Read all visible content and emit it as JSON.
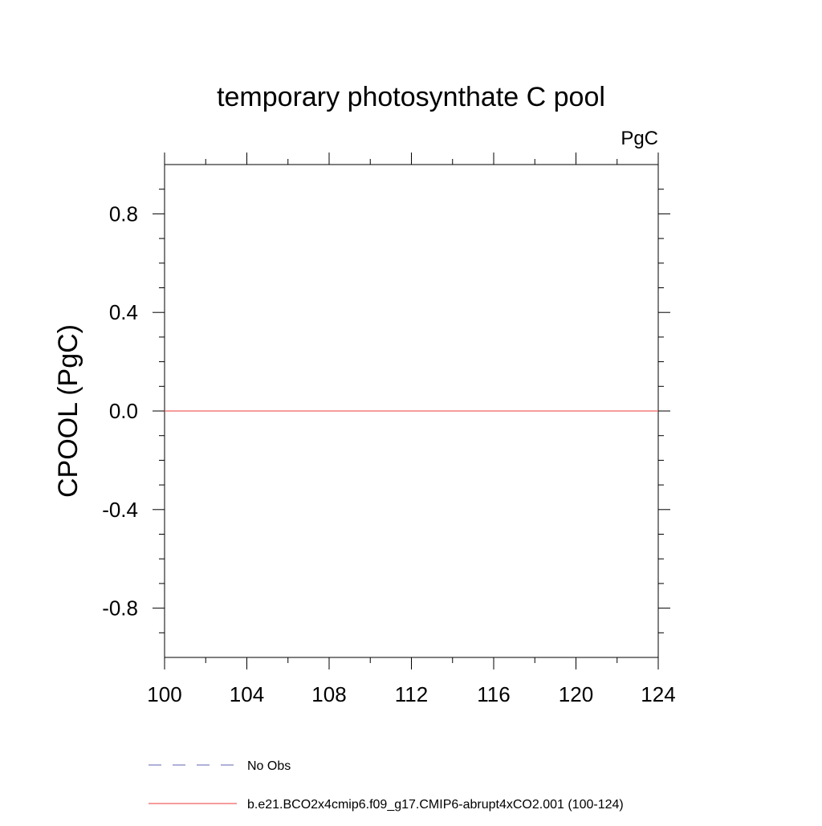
{
  "chart_data": {
    "type": "line",
    "title": "temporary photosynthate C pool",
    "units": "PgC",
    "xlabel": "",
    "ylabel": "CPOOL  (PgC)",
    "xlim": [
      100,
      124
    ],
    "ylim": [
      -1,
      1
    ],
    "x_ticks": [
      100,
      104,
      108,
      112,
      116,
      120,
      124
    ],
    "x_minor_ticks": [
      102,
      106,
      110,
      114,
      118,
      122
    ],
    "y_ticks": [
      -0.8,
      -0.4,
      0.0,
      0.4,
      0.8
    ],
    "y_tick_labels": [
      "-0.8",
      "-0.4",
      "0.0",
      "0.4",
      "0.8"
    ],
    "y_minor_ticks": [
      -0.9,
      -0.7,
      -0.6,
      -0.5,
      -0.3,
      -0.2,
      -0.1,
      0.1,
      0.2,
      0.3,
      0.5,
      0.6,
      0.7,
      0.9
    ],
    "grid": false,
    "legend_position": "bottom",
    "series": [
      {
        "name": "No Obs",
        "color": "#8080c0",
        "dash": "dashed",
        "x": [],
        "y": []
      },
      {
        "name": "b.e21.BCO2x4cmip6.f09_g17.CMIP6-abrupt4xCO2.001 (100-124)",
        "color": "#f06060",
        "dash": "solid",
        "x": [
          100,
          104,
          108,
          112,
          116,
          120,
          124
        ],
        "y": [
          0,
          0,
          0,
          0,
          0,
          0,
          0
        ]
      }
    ]
  }
}
